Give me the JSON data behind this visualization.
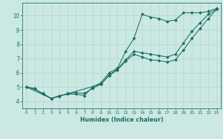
{
  "title": "",
  "xlabel": "Humidex (Indice chaleur)",
  "ylabel": "",
  "background_color": "#cbe8e3",
  "grid_color": "#b8d8d2",
  "line_color": "#1a6e64",
  "xlim": [
    -0.5,
    23.5
  ],
  "ylim": [
    3.5,
    10.9
  ],
  "xticks": [
    0,
    1,
    2,
    3,
    4,
    5,
    6,
    7,
    8,
    9,
    10,
    11,
    12,
    13,
    14,
    15,
    16,
    17,
    18,
    19,
    20,
    21,
    22,
    23
  ],
  "yticks": [
    4,
    5,
    6,
    7,
    8,
    9,
    10
  ],
  "line1_x": [
    0,
    1,
    2,
    3,
    4,
    5,
    6,
    7,
    8,
    9,
    10,
    11,
    12,
    13,
    14,
    15,
    16,
    17,
    18,
    19,
    20,
    21,
    22,
    23
  ],
  "line1_y": [
    5.0,
    4.9,
    4.5,
    4.2,
    4.4,
    4.5,
    4.5,
    4.4,
    5.0,
    5.3,
    6.0,
    6.3,
    7.5,
    8.4,
    10.1,
    9.9,
    9.8,
    9.6,
    9.7,
    10.2,
    10.2,
    10.2,
    10.3,
    10.5
  ],
  "line2_x": [
    0,
    1,
    2,
    3,
    4,
    5,
    6,
    7,
    8,
    9,
    10,
    11,
    12,
    13,
    14,
    15,
    16,
    17,
    18,
    19,
    20,
    21,
    22,
    23
  ],
  "line2_y": [
    5.0,
    4.85,
    4.55,
    4.2,
    4.35,
    4.55,
    4.6,
    4.55,
    4.9,
    5.2,
    5.85,
    6.25,
    6.9,
    7.5,
    7.4,
    7.3,
    7.2,
    7.1,
    7.3,
    8.1,
    8.9,
    9.5,
    10.1,
    10.45
  ],
  "line3_x": [
    0,
    3,
    9,
    10,
    11,
    12,
    13,
    14,
    15,
    16,
    17,
    18,
    19,
    20,
    21,
    22,
    23
  ],
  "line3_y": [
    5.0,
    4.2,
    5.2,
    5.8,
    6.2,
    6.8,
    7.3,
    7.1,
    6.9,
    6.85,
    6.75,
    6.9,
    7.6,
    8.4,
    9.1,
    9.8,
    10.45
  ]
}
